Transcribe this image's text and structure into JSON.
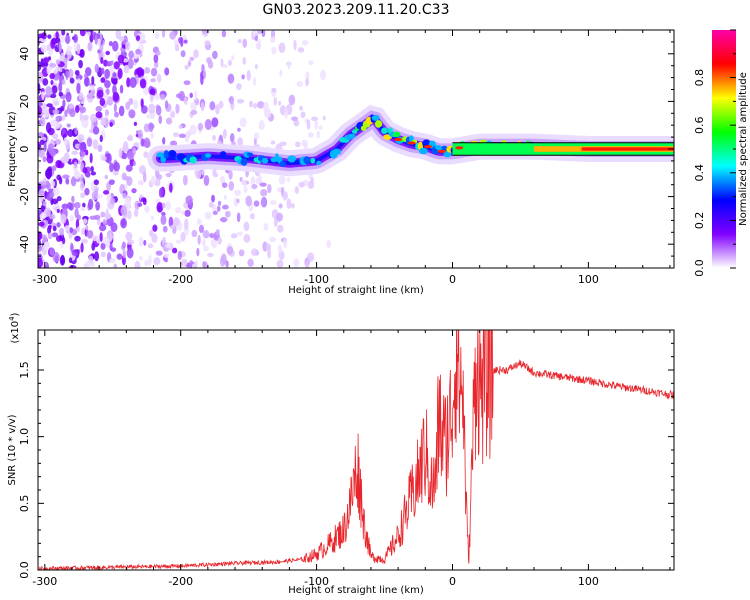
{
  "title": "GN03.2023.209.11.20.C33",
  "chart_data": [
    {
      "type": "heatmap",
      "xlabel": "Height of straight line (km)",
      "ylabel": "Frequency (Hz)",
      "xlim": [
        -305,
        163
      ],
      "ylim": [
        -50,
        50
      ],
      "x_ticks": [
        "-300",
        "-200",
        "-100",
        "0",
        "100"
      ],
      "y_ticks": [
        "-40",
        "-20",
        "0",
        "20",
        "40"
      ],
      "colorbar": {
        "label": "Normalized spectral amplitude",
        "range": [
          0,
          1
        ],
        "ticks": [
          "0.0",
          "0.2",
          "0.4",
          "0.6",
          "0.8"
        ],
        "colors": [
          "#ffffff",
          "#8000ff",
          "#0000ff",
          "#00ffff",
          "#00ff00",
          "#ffff00",
          "#ff0000",
          "#ff00aa"
        ]
      },
      "ridge": {
        "x_km": [
          -210,
          -180,
          -150,
          -120,
          -100,
          -85,
          -75,
          -65,
          -58,
          -50,
          -40,
          -30,
          -20,
          -10,
          0,
          20,
          60,
          100,
          163
        ],
        "freq_hz": [
          -4,
          -3,
          -4,
          -6,
          -5,
          0,
          6,
          10,
          13,
          7,
          4,
          2,
          1,
          -1,
          -1,
          1,
          1,
          0,
          0
        ]
      }
    },
    {
      "type": "line",
      "xlabel": "Height of straight line (km)",
      "ylabel": "SNR (10 * v/v)",
      "multiplier": "(x10",
      "multiplier_exp": "4",
      "multiplier_close": ")",
      "xlim": [
        -305,
        163
      ],
      "ylim": [
        0,
        1.8
      ],
      "x_ticks": [
        "-300",
        "-200",
        "-100",
        "0",
        "100"
      ],
      "y_ticks": [
        "0.0",
        "0.5",
        "1.0",
        "1.5"
      ],
      "color": "#e8262c",
      "x": [
        -305,
        -250,
        -200,
        -160,
        -130,
        -110,
        -100,
        -90,
        -80,
        -75,
        -70,
        -65,
        -60,
        -50,
        -40,
        -35,
        -30,
        -25,
        -20,
        -15,
        -12,
        -10,
        -8,
        -5,
        -2,
        0,
        3,
        5,
        8,
        10,
        12,
        15,
        18,
        20,
        25,
        30,
        40,
        50,
        60,
        80,
        100,
        120,
        140,
        163
      ],
      "y": [
        0.01,
        0.02,
        0.03,
        0.05,
        0.06,
        0.08,
        0.12,
        0.2,
        0.3,
        0.5,
        0.8,
        0.35,
        0.1,
        0.08,
        0.25,
        0.4,
        0.55,
        0.7,
        0.9,
        0.6,
        0.7,
        1.2,
        1.0,
        0.95,
        1.1,
        1.25,
        1.75,
        1.45,
        1.3,
        0.5,
        0.05,
        1.0,
        1.7,
        1.35,
        1.45,
        1.5,
        1.5,
        1.55,
        1.48,
        1.45,
        1.42,
        1.38,
        1.35,
        1.31
      ]
    }
  ]
}
